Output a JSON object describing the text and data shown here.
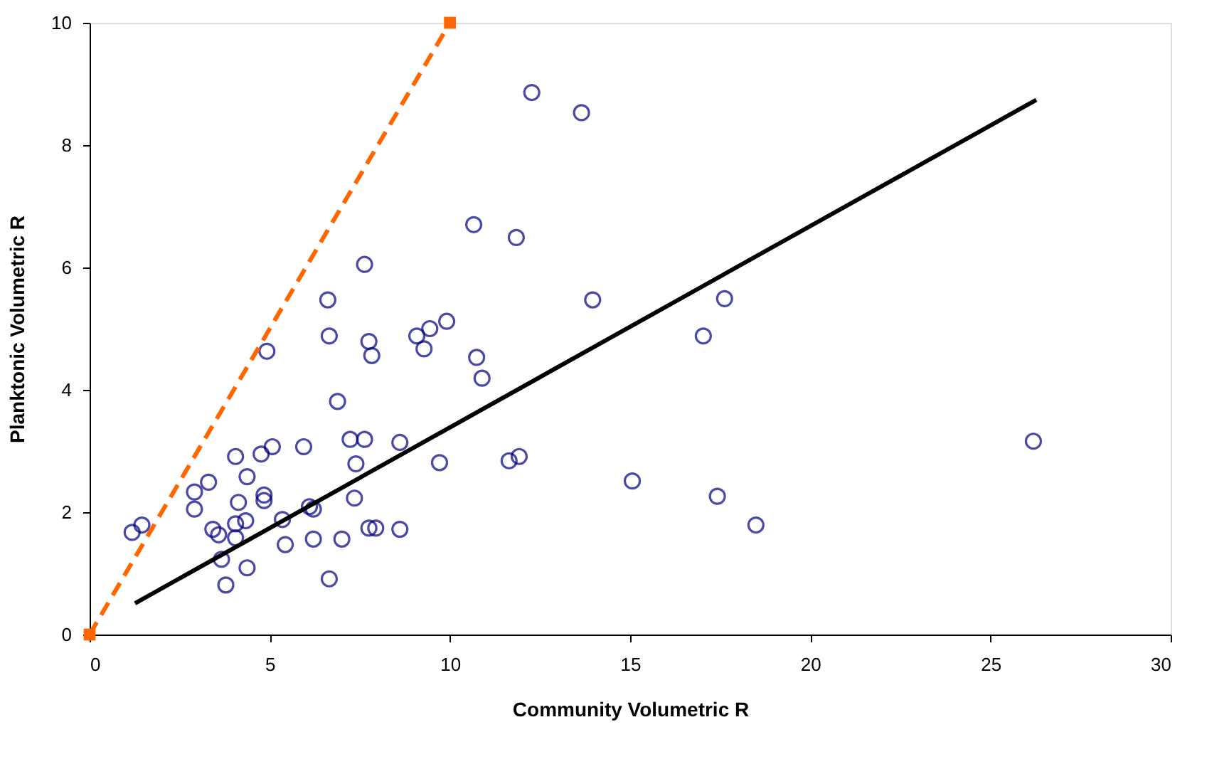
{
  "chart_data": {
    "type": "scatter",
    "xlabel": "Community Volumetric R",
    "ylabel": "Planktonic Volumetric R",
    "xlim": [
      0,
      30
    ],
    "ylim": [
      0,
      10
    ],
    "xticks": [
      0,
      5,
      10,
      15,
      20,
      25,
      30
    ],
    "yticks": [
      0,
      2,
      4,
      6,
      8,
      10
    ],
    "grid": false,
    "legend": false,
    "series": [
      {
        "marker": "circle",
        "color": "#000080",
        "x": [
          1.18,
          1.45,
          2.91,
          2.91,
          3.3,
          3.42,
          3.58,
          3.66,
          3.78,
          4.05,
          4.13,
          4.05,
          4.05,
          4.33,
          4.37,
          4.37,
          4.76,
          4.84,
          4.84,
          4.92,
          5.07,
          5.35,
          5.43,
          5.94,
          6.1,
          6.21,
          6.21,
          6.61,
          6.65,
          6.65,
          6.88,
          7.0,
          7.23,
          7.35,
          7.39,
          7.63,
          7.63,
          7.75,
          7.75,
          7.83,
          7.94,
          8.61,
          8.61,
          9.08,
          9.28,
          9.44,
          9.71,
          9.91,
          10.66,
          10.74,
          10.89,
          11.64,
          11.92,
          11.84,
          12.27,
          13.65,
          13.96,
          15.06,
          17.03,
          17.42,
          17.62,
          18.49,
          26.19
        ],
        "values": [
          1.67,
          1.79,
          2.33,
          2.05,
          2.49,
          1.72,
          1.63,
          1.23,
          0.81,
          2.91,
          2.16,
          1.81,
          1.58,
          1.86,
          2.58,
          1.09,
          2.95,
          2.28,
          2.19,
          4.63,
          3.07,
          1.88,
          1.47,
          3.07,
          2.09,
          2.05,
          1.56,
          5.47,
          4.88,
          0.91,
          3.81,
          1.56,
          3.19,
          2.23,
          2.79,
          3.19,
          6.05,
          4.79,
          1.74,
          4.56,
          1.74,
          3.14,
          1.72,
          4.88,
          4.67,
          5.0,
          2.81,
          5.12,
          6.7,
          4.53,
          4.19,
          2.84,
          2.91,
          6.49,
          8.86,
          8.53,
          5.47,
          2.51,
          4.88,
          2.26,
          5.49,
          1.79,
          3.16
        ]
      },
      {
        "type": "line",
        "marker": "none",
        "line_style": "solid",
        "color": "#000000",
        "x": [
          1.26,
          26.27
        ],
        "values": [
          0.51,
          8.74
        ]
      },
      {
        "type": "line",
        "marker": "square",
        "line_style": "dashed",
        "color": "#ff6600",
        "x": [
          0,
          10
        ],
        "values": [
          0,
          10
        ]
      }
    ]
  }
}
